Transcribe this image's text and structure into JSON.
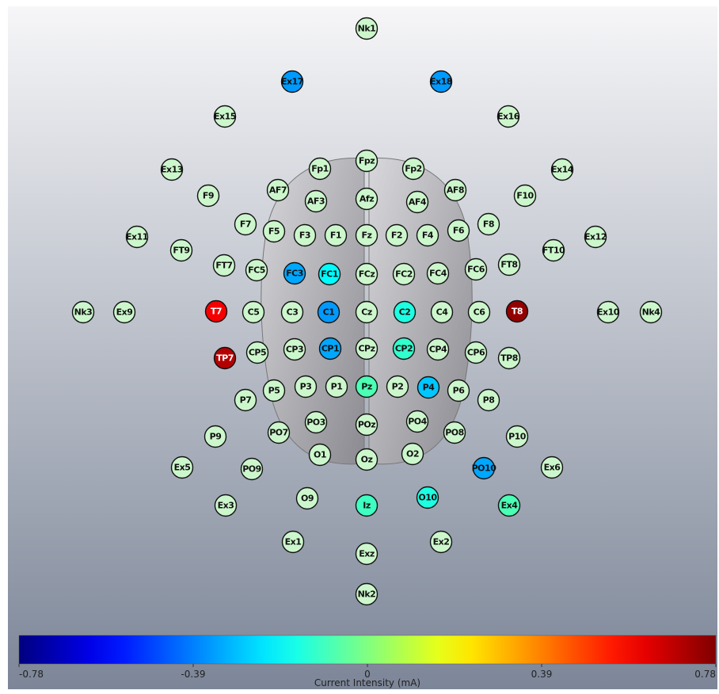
{
  "electrodes": [
    {
      "label": "Nk1",
      "current": 0
    },
    {
      "label": "Ex17",
      "current": -0.35
    },
    {
      "label": "Ex18",
      "current": -0.35
    },
    {
      "label": "Ex15",
      "current": 0
    },
    {
      "label": "Ex16",
      "current": 0
    },
    {
      "label": "Ex13",
      "current": 0
    },
    {
      "label": "Ex14",
      "current": 0
    },
    {
      "label": "Fpz",
      "current": 0
    },
    {
      "label": "Fp1",
      "current": 0
    },
    {
      "label": "Fp2",
      "current": 0
    },
    {
      "label": "F9",
      "current": 0
    },
    {
      "label": "AF7",
      "current": 0
    },
    {
      "label": "AF3",
      "current": 0
    },
    {
      "label": "Afz",
      "current": 0
    },
    {
      "label": "AF4",
      "current": 0
    },
    {
      "label": "AF8",
      "current": 0
    },
    {
      "label": "F10",
      "current": 0
    },
    {
      "label": "F7",
      "current": 0
    },
    {
      "label": "F5",
      "current": 0
    },
    {
      "label": "F3",
      "current": 0
    },
    {
      "label": "F1",
      "current": 0
    },
    {
      "label": "Fz",
      "current": 0
    },
    {
      "label": "F2",
      "current": 0
    },
    {
      "label": "F4",
      "current": 0
    },
    {
      "label": "F6",
      "current": 0
    },
    {
      "label": "F8",
      "current": 0
    },
    {
      "label": "Ex11",
      "current": 0
    },
    {
      "label": "FT9",
      "current": 0
    },
    {
      "label": "FT10",
      "current": 0
    },
    {
      "label": "Ex12",
      "current": 0
    },
    {
      "label": "FT7",
      "current": 0
    },
    {
      "label": "FC5",
      "current": 0
    },
    {
      "label": "FC3",
      "current": -0.33
    },
    {
      "label": "FC1",
      "current": -0.2
    },
    {
      "label": "FCz",
      "current": 0
    },
    {
      "label": "FC2",
      "current": 0
    },
    {
      "label": "FC4",
      "current": 0
    },
    {
      "label": "FC6",
      "current": 0
    },
    {
      "label": "FT8",
      "current": 0
    },
    {
      "label": "Nk3",
      "current": 0
    },
    {
      "label": "Ex9",
      "current": 0
    },
    {
      "label": "T7",
      "current": 0.6
    },
    {
      "label": "C5",
      "current": 0
    },
    {
      "label": "C3",
      "current": 0
    },
    {
      "label": "C1",
      "current": -0.35
    },
    {
      "label": "Cz",
      "current": 0
    },
    {
      "label": "C2",
      "current": -0.15
    },
    {
      "label": "C4",
      "current": 0
    },
    {
      "label": "C6",
      "current": 0
    },
    {
      "label": "T8",
      "current": 0.75
    },
    {
      "label": "Ex10",
      "current": 0
    },
    {
      "label": "Nk4",
      "current": 0
    },
    {
      "label": "TP7",
      "current": 0.7
    },
    {
      "label": "CP5",
      "current": 0
    },
    {
      "label": "CP3",
      "current": 0
    },
    {
      "label": "CP1",
      "current": -0.33
    },
    {
      "label": "CPz",
      "current": 0
    },
    {
      "label": "CP2",
      "current": -0.12
    },
    {
      "label": "CP4",
      "current": 0
    },
    {
      "label": "CP6",
      "current": 0
    },
    {
      "label": "TP8",
      "current": 0
    },
    {
      "label": "P7",
      "current": 0
    },
    {
      "label": "P5",
      "current": 0
    },
    {
      "label": "P3",
      "current": 0
    },
    {
      "label": "P1",
      "current": 0
    },
    {
      "label": "Pz",
      "current": -0.08
    },
    {
      "label": "P2",
      "current": 0
    },
    {
      "label": "P4",
      "current": -0.28
    },
    {
      "label": "P6",
      "current": 0
    },
    {
      "label": "P8",
      "current": 0
    },
    {
      "label": "PO3",
      "current": 0
    },
    {
      "label": "POz",
      "current": 0
    },
    {
      "label": "PO4",
      "current": 0
    },
    {
      "label": "P9",
      "current": 0
    },
    {
      "label": "PO7",
      "current": 0
    },
    {
      "label": "PO8",
      "current": 0
    },
    {
      "label": "P10",
      "current": 0
    },
    {
      "label": "O1",
      "current": 0
    },
    {
      "label": "Oz",
      "current": 0
    },
    {
      "label": "O2",
      "current": 0
    },
    {
      "label": "Ex5",
      "current": 0
    },
    {
      "label": "PO9",
      "current": 0
    },
    {
      "label": "PO10",
      "current": -0.33
    },
    {
      "label": "Ex6",
      "current": 0
    },
    {
      "label": "Ex3",
      "current": 0
    },
    {
      "label": "O9",
      "current": 0
    },
    {
      "label": "Iz",
      "current": -0.1
    },
    {
      "label": "O10",
      "current": -0.15
    },
    {
      "label": "Ex4",
      "current": -0.08
    },
    {
      "label": "Ex1",
      "current": 0
    },
    {
      "label": "Exz",
      "current": 0
    },
    {
      "label": "Ex2",
      "current": 0
    },
    {
      "label": "Nk2",
      "current": 0
    }
  ],
  "colorbar": {
    "label": "Current Intensity (mA)",
    "range": [
      -0.78,
      0.78
    ],
    "ticks": [
      -0.78,
      -0.39,
      0,
      0.39,
      0.78
    ]
  }
}
